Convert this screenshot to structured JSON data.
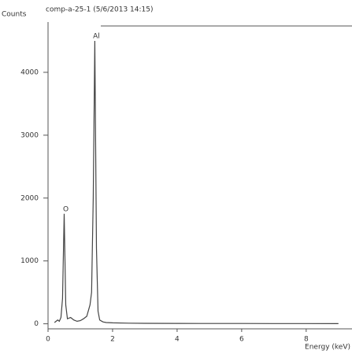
{
  "chart_data": {
    "type": "line",
    "title": "comp-a-25-1 (5/6/2013 14:15)",
    "y_label": "Counts",
    "x_label": "Energy (keV)",
    "x": [
      0.2,
      0.3,
      0.35,
      0.4,
      0.45,
      0.5,
      0.55,
      0.6,
      0.7,
      0.8,
      0.9,
      1.0,
      1.1,
      1.2,
      1.3,
      1.35,
      1.4,
      1.45,
      1.5,
      1.55,
      1.6,
      1.7,
      1.8,
      2.0,
      2.5,
      3,
      4,
      5,
      6,
      7,
      8,
      9
    ],
    "values": [
      20,
      60,
      40,
      100,
      400,
      1750,
      300,
      80,
      100,
      60,
      40,
      50,
      80,
      120,
      300,
      500,
      2000,
      4500,
      1200,
      200,
      60,
      30,
      20,
      15,
      10,
      8,
      6,
      5,
      5,
      4,
      4,
      3
    ],
    "color": "#444444",
    "xlim": [
      0,
      9.2
    ],
    "xticks": [
      0,
      2,
      4,
      6,
      8
    ],
    "ylim": [
      -80,
      4800
    ],
    "yticks": [
      0,
      1000,
      2000,
      3000,
      4000
    ],
    "grid": false,
    "annotations": [
      {
        "text": "O",
        "x": 0.5,
        "y": 1750
      },
      {
        "text": "Al",
        "x": 1.45,
        "y": 4500
      }
    ]
  }
}
